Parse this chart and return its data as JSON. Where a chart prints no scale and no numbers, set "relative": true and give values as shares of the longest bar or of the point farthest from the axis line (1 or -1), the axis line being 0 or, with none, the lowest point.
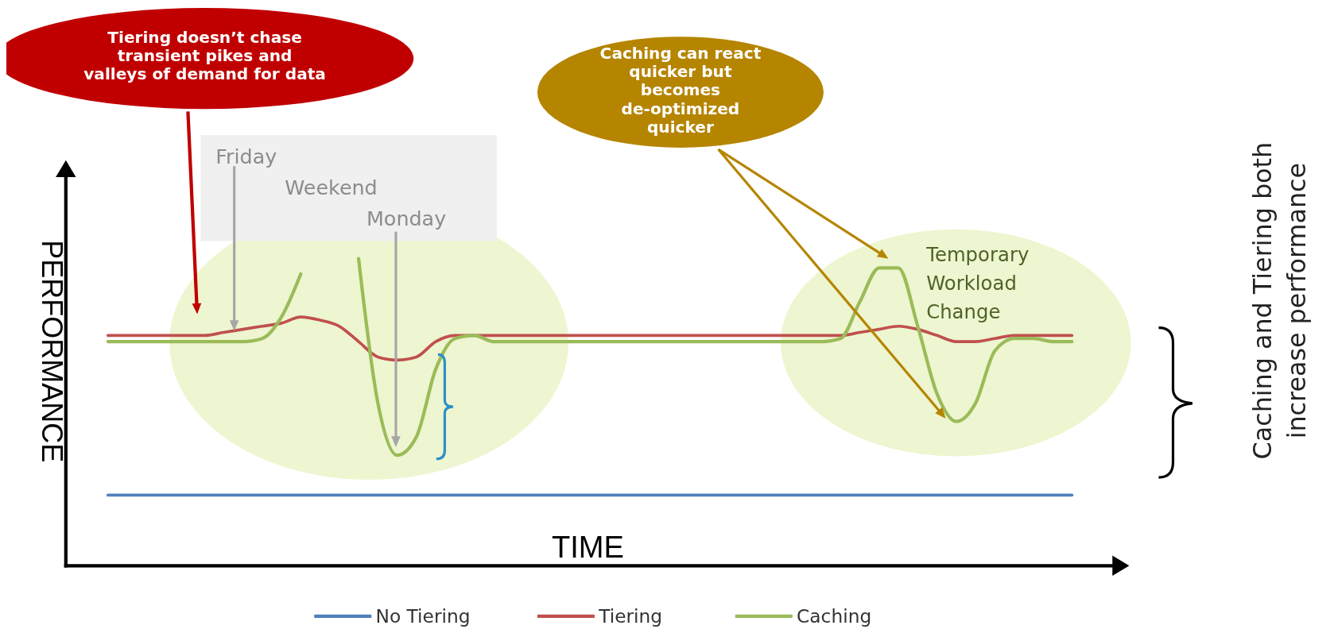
{
  "chart_data": {
    "type": "line",
    "relative": true,
    "xlabel": "TIME",
    "ylabel": "PERFORMANCE",
    "legend": "bottom",
    "categories": [
      null,
      null,
      null,
      null,
      null,
      null,
      null,
      null,
      null,
      null,
      null,
      null,
      null,
      null,
      null,
      null,
      null,
      null,
      null,
      null,
      null,
      null,
      null,
      null,
      null,
      null,
      null,
      null,
      null,
      null,
      null,
      null,
      null,
      null,
      null,
      null,
      null,
      null,
      null,
      null,
      null,
      null,
      null,
      null,
      null,
      null,
      null,
      null,
      null,
      null,
      null
    ],
    "series": [
      {
        "name": "No Tiering",
        "color": "#4f81bd",
        "values": [
          0.23,
          0.23,
          0.23,
          0.23,
          0.23,
          0.23,
          0.23,
          0.23,
          0.23,
          0.23,
          0.23,
          0.23,
          0.23,
          0.23,
          0.23,
          0.23,
          0.23,
          0.23,
          0.23,
          0.23,
          0.23,
          0.23,
          0.23,
          0.23,
          0.23,
          0.23,
          0.23,
          0.23,
          0.23,
          0.23,
          0.23,
          0.23,
          0.23,
          0.23,
          0.23,
          0.23,
          0.23,
          0.23,
          0.23,
          0.23,
          0.23,
          0.23,
          0.23,
          0.23,
          0.23,
          0.23,
          0.23,
          0.23,
          0.23,
          0.23,
          0.23
        ]
      },
      {
        "name": "Tiering",
        "color": "#c0504d",
        "values": [
          0.75,
          0.75,
          0.75,
          0.75,
          0.75,
          0.75,
          0.76,
          0.77,
          0.78,
          0.79,
          0.81,
          0.8,
          0.78,
          0.73,
          0.68,
          0.67,
          0.68,
          0.73,
          0.75,
          0.75,
          0.75,
          0.75,
          0.75,
          0.75,
          0.75,
          0.75,
          0.75,
          0.75,
          0.75,
          0.75,
          0.75,
          0.75,
          0.75,
          0.75,
          0.75,
          0.75,
          0.75,
          0.75,
          0.75,
          0.76,
          0.77,
          0.78,
          0.77,
          0.75,
          0.73,
          0.73,
          0.74,
          0.75,
          0.75,
          0.75,
          0.75
        ]
      },
      {
        "name": "Caching",
        "color": "#9bbb59",
        "values": [
          0.73,
          0.73,
          0.73,
          0.73,
          0.73,
          0.73,
          0.73,
          0.73,
          0.74,
          0.81,
          0.95,
          null,
          null,
          1,
          0.53,
          0.36,
          0.42,
          0.64,
          0.74,
          0.75,
          0.73,
          0.73,
          0.73,
          0.73,
          0.73,
          0.73,
          0.73,
          0.73,
          0.73,
          0.73,
          0.73,
          0.73,
          0.73,
          0.73,
          0.73,
          0.73,
          0.73,
          0.73,
          0.74,
          0.86,
          0.97,
          0.97,
          0.78,
          0.56,
          0.47,
          0.53,
          0.7,
          0.74,
          0.74,
          0.73,
          0.73
        ]
      }
    ],
    "annotations": [
      "Tiering doesn’t chase transient pikes and valleys of demand for data",
      "Caching can react quicker but becomes de-optimized quicker",
      "Friday",
      "Weekend",
      "Monday",
      "Temporary Workload Change",
      "Caching and Tiering both increase performance"
    ]
  }
}
